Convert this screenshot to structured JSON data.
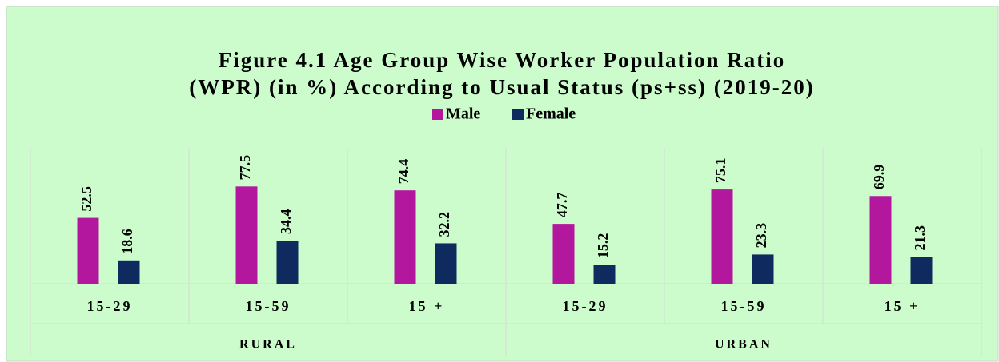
{
  "chart_data": {
    "type": "bar",
    "title": [
      "Figure 4.1 Age Group Wise Worker Population Ratio",
      "(WPR) (in %) According to Usual Status (ps+ss) (2019-20)"
    ],
    "groups": [
      {
        "name": "RURAL",
        "categories": [
          "15-29",
          "15-59",
          "15 +"
        ]
      },
      {
        "name": "URBAN",
        "categories": [
          "15-29",
          "15-59",
          "15 +"
        ]
      }
    ],
    "series": [
      {
        "name": "Male",
        "color": "#b3179d",
        "values": [
          52.5,
          77.5,
          74.4,
          47.7,
          75.1,
          69.9
        ]
      },
      {
        "name": "Female",
        "color": "#0e2a5e",
        "values": [
          18.6,
          34.4,
          32.2,
          15.2,
          23.3,
          21.3
        ]
      }
    ],
    "ylim": [
      0,
      100
    ],
    "legend": "top"
  }
}
